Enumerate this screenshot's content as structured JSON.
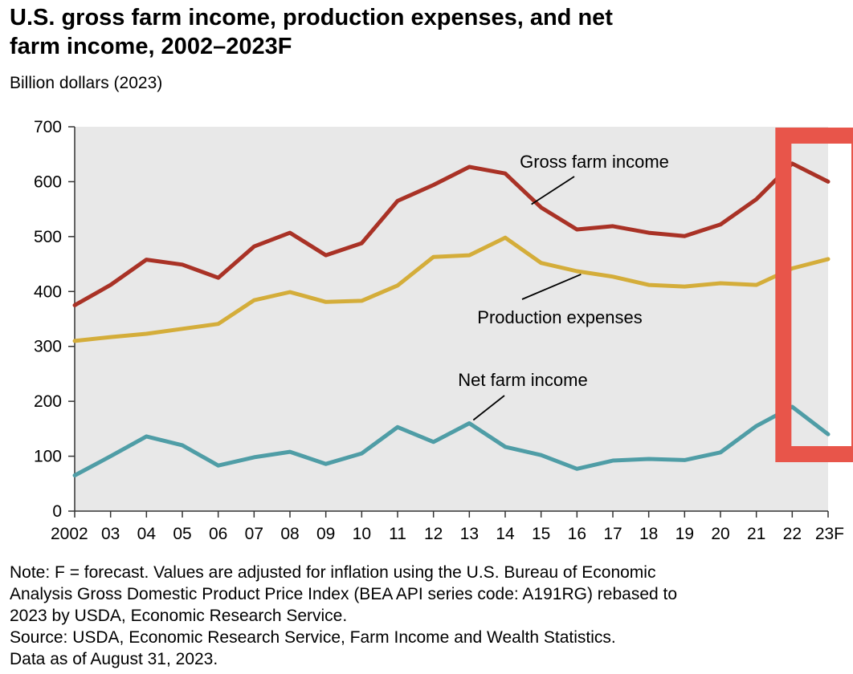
{
  "title_lines": [
    "U.S. gross farm income, production expenses, and net",
    "farm income, 2002–2023F"
  ],
  "colors": {
    "gross": "#a93226",
    "expenses": "#d4ad3a",
    "net": "#4f9da6",
    "plot_bg": "#e8e8e8",
    "highlight": "#e8554a"
  },
  "chart_data": {
    "type": "line",
    "title": "U.S. gross farm income, production expenses, and net farm income, 2002–2023F",
    "ylabel": "Billion dollars (2023)",
    "xlabel": "",
    "ylim": [
      0,
      700
    ],
    "yticks": [
      0,
      100,
      200,
      300,
      400,
      500,
      600,
      700
    ],
    "grid": false,
    "x": [
      "2002",
      "03",
      "04",
      "05",
      "06",
      "07",
      "08",
      "09",
      "10",
      "11",
      "12",
      "13",
      "14",
      "15",
      "16",
      "17",
      "18",
      "19",
      "20",
      "21",
      "22",
      "23F"
    ],
    "series": [
      {
        "name": "Gross farm income",
        "color_key": "gross",
        "values": [
          375,
          412,
          458,
          449,
          425,
          482,
          507,
          466,
          488,
          565,
          594,
          627,
          615,
          553,
          513,
          519,
          507,
          501,
          522,
          568,
          633,
          600
        ]
      },
      {
        "name": "Production expenses",
        "color_key": "expenses",
        "values": [
          310,
          317,
          323,
          332,
          341,
          384,
          399,
          381,
          383,
          411,
          463,
          466,
          498,
          452,
          437,
          427,
          412,
          409,
          415,
          412,
          442,
          459
        ]
      },
      {
        "name": "Net farm income",
        "color_key": "net",
        "values": [
          65,
          100,
          136,
          120,
          83,
          98,
          108,
          86,
          105,
          153,
          126,
          160,
          117,
          102,
          77,
          92,
          95,
          93,
          107,
          155,
          190,
          140
        ]
      }
    ],
    "annotations": [
      {
        "text": "Gross farm income",
        "series": 0,
        "x_index": 13
      },
      {
        "text": "Production expenses",
        "series": 1,
        "x_index": 14
      },
      {
        "text": "Net farm income",
        "series": 2,
        "x_index": 11
      }
    ],
    "highlight": {
      "from": "22",
      "to": "23F"
    }
  },
  "notes": [
    "Note: F = forecast. Values are adjusted for inflation using the U.S. Bureau of Economic",
    "Analysis Gross Domestic Product Price Index (BEA API series code: A191RG) rebased to",
    "2023 by USDA, Economic Research Service.",
    "Source: USDA, Economic Research Service, Farm Income and Wealth Statistics.",
    "Data as of August 31, 2023."
  ]
}
